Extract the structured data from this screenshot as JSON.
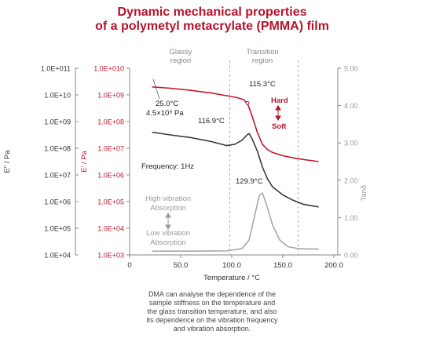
{
  "chart_data": {
    "type": "line",
    "title_line1": "Dynamic mechanical properties",
    "title_line2": "of a polymetyl metacrylate (PMMA) film",
    "xlabel": "Temperature / °C",
    "ylabel_left": "E\" / Pa",
    "ylabel_mid": "E' / Pa",
    "ylabel_right": "Tanδ",
    "xlim": [
      0,
      200
    ],
    "x_ticks": [
      "0",
      "50.0",
      "100.0",
      "150.0",
      "200.0"
    ],
    "x_tick_values": [
      0,
      50,
      100,
      150,
      200
    ],
    "y_left_ticks": [
      "1.0E+011",
      "1.0E+10",
      "1.0E+09",
      "1.0E+08",
      "1.0E+07",
      "1.0E+06",
      "1.0E+05",
      "1.0E+04"
    ],
    "y_mid_ticks": [
      "1.0E+010",
      "1.0E+09",
      "1.0E+08",
      "1.0E+07",
      "1.0E+06",
      "1.0E+05",
      "1.0E+04",
      "1.0E+03"
    ],
    "y_right_ticks": [
      "5.00",
      "4.00",
      "3.00",
      "2.00",
      "1.00",
      "0.00"
    ],
    "y_right_values": [
      5,
      4,
      3,
      2,
      1,
      0
    ],
    "y_mid_log_range": [
      3,
      10
    ],
    "y_left_log_range": [
      4,
      11
    ],
    "y_right_range": [
      0,
      5
    ],
    "colors": {
      "storage": "#c0182e",
      "loss": "#3a3a3a",
      "tan": "#a8a8a8",
      "title": "#b5132b",
      "axis": "#888888"
    },
    "regions": [
      {
        "label_line1": "Glassy",
        "label_line2": "region",
        "x": 50
      },
      {
        "label_line1": "Transition",
        "label_line2": "region",
        "x": 130
      }
    ],
    "region_boundaries_x": [
      98,
      165
    ],
    "series": [
      {
        "axis": "mid",
        "color": "#c0182e",
        "log10_points": [
          [
            22,
            9.3
          ],
          [
            40,
            9.25
          ],
          [
            60,
            9.17
          ],
          [
            80,
            9.07
          ],
          [
            95,
            8.97
          ],
          [
            105,
            8.9
          ],
          [
            112,
            8.82
          ],
          [
            116,
            8.62
          ],
          [
            120,
            8.2
          ],
          [
            125,
            7.6
          ],
          [
            130,
            7.15
          ],
          [
            135,
            6.95
          ],
          [
            140,
            6.84
          ],
          [
            150,
            6.72
          ],
          [
            160,
            6.64
          ],
          [
            170,
            6.58
          ],
          [
            185,
            6.5
          ]
        ]
      },
      {
        "axis": "left",
        "color": "#3a3a3a",
        "log10_points": [
          [
            22,
            8.6
          ],
          [
            40,
            8.5
          ],
          [
            60,
            8.4
          ],
          [
            80,
            8.25
          ],
          [
            95,
            8.1
          ],
          [
            103,
            8.15
          ],
          [
            110,
            8.3
          ],
          [
            115,
            8.5
          ],
          [
            117,
            8.55
          ],
          [
            120,
            8.35
          ],
          [
            125,
            7.9
          ],
          [
            130,
            7.3
          ],
          [
            135,
            6.85
          ],
          [
            140,
            6.55
          ],
          [
            150,
            6.25
          ],
          [
            160,
            6.05
          ],
          [
            170,
            5.9
          ],
          [
            185,
            5.8
          ]
        ]
      },
      {
        "axis": "right",
        "color": "#a8a8a8",
        "points": [
          [
            22,
            0.1
          ],
          [
            60,
            0.1
          ],
          [
            95,
            0.11
          ],
          [
            110,
            0.17
          ],
          [
            117,
            0.4
          ],
          [
            122,
            1.0
          ],
          [
            127,
            1.6
          ],
          [
            130,
            1.66
          ],
          [
            134,
            1.35
          ],
          [
            140,
            0.8
          ],
          [
            147,
            0.4
          ],
          [
            155,
            0.22
          ],
          [
            165,
            0.17
          ],
          [
            175,
            0.16
          ],
          [
            185,
            0.16
          ]
        ]
      }
    ],
    "annotations": {
      "p1_line1": "25.0°C",
      "p1_line2": "4.5×10⁹ Pa",
      "p2": "116.9°C",
      "p3": "115.3°C",
      "p4": "129.9°C",
      "hard": "Hard",
      "soft": "Soft",
      "frequency": "Frequency: 1Hz",
      "high_line1": "High vibration",
      "high_line2": "Absorption",
      "low_line1": "Low vibration",
      "low_line2": "Absorption"
    },
    "caption": [
      "DMA can analyse the dependence of the",
      "sample stiffness on the temperature and",
      "the glass transition temperature, and also",
      "its dependence on the vibration frequency",
      "and vibration absorption."
    ]
  }
}
